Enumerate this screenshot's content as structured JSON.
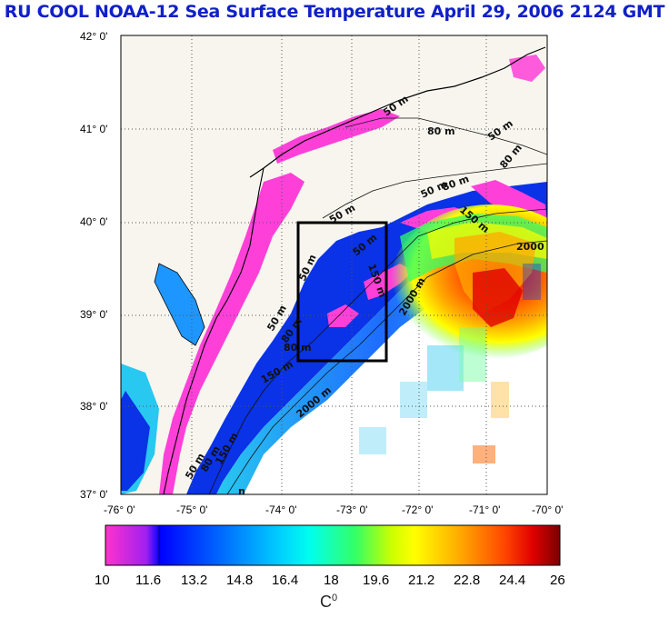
{
  "title": "RU COOL  NOAA-12 Sea Surface Temperature April 29, 2006 2124 GMT",
  "map": {
    "lat_labels": [
      "42° 0'",
      "41° 0'",
      "40° 0'",
      "39° 0'",
      "38° 0'",
      "37° 0'"
    ],
    "lon_labels": [
      "-76° 0'",
      "-75° 0'",
      "-74° 0'",
      "-73° 0'",
      "-72° 0'",
      "-71° 0'",
      "-70° 0'"
    ],
    "lat_range": [
      37,
      42
    ],
    "lon_range": [
      -76,
      -70
    ],
    "grid": true,
    "grid_style": "dotted",
    "contour_labels": [
      "50 m",
      "80 m",
      "50 m",
      "80 m",
      "50 m",
      "50 m",
      "80 m",
      "150 m",
      "50 m",
      "2000",
      "50 m",
      "50 m",
      "80 m",
      "150 m",
      "80 m",
      "2000 m",
      "150 m",
      "2000 m",
      "50 m",
      "80 m",
      "150 m",
      "n"
    ],
    "study_box": {
      "lon": [
        -73.45,
        -72.45
      ],
      "lat": [
        38.5,
        40.0
      ]
    }
  },
  "colorbar": {
    "min": 10,
    "max": 26,
    "tick_labels": [
      "10",
      "11.6",
      "13.2",
      "14.8",
      "16.4",
      "18",
      "19.6",
      "21.2",
      "22.8",
      "24.4",
      "26"
    ],
    "unit_label": "C",
    "unit_superscript": "0",
    "colors": [
      "#ff33cc",
      "#a020f0",
      "#0000ff",
      "#0066ff",
      "#00ccff",
      "#00ffee",
      "#33ff66",
      "#ccff00",
      "#ffff00",
      "#ffaa00",
      "#ff4400",
      "#e00000",
      "#7a0000"
    ]
  },
  "palette": {
    "land": "#f7f5ee",
    "deep_blue": "#0a32e6",
    "nearshore": "#ff40d8",
    "bay": "#1e96ff",
    "cyan": "#28c8f0",
    "coast": "#000000"
  }
}
